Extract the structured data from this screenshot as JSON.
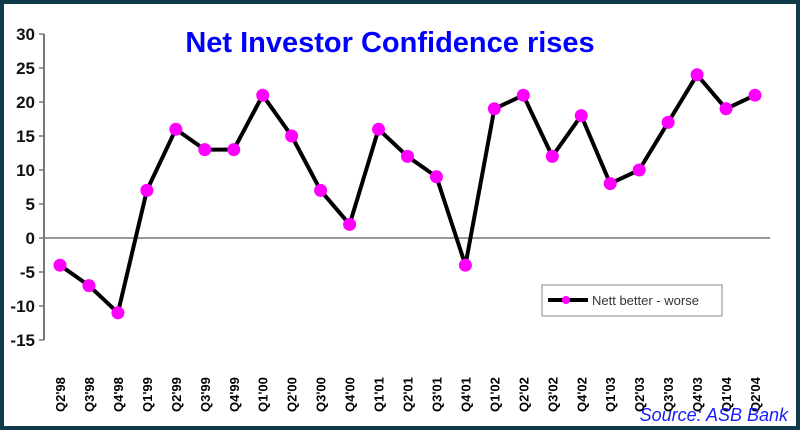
{
  "chart_data": {
    "type": "line",
    "title": "Net Investor Confidence rises",
    "source": "Source: ASB Bank",
    "xlabel": "",
    "ylabel": "",
    "ylim": [
      -15,
      30
    ],
    "yticks": [
      -15,
      -10,
      -5,
      0,
      5,
      10,
      15,
      20,
      25,
      30
    ],
    "grid": false,
    "legend_position": "right",
    "categories": [
      "Q2'98",
      "Q3'98",
      "Q4'98",
      "Q1'99",
      "Q2'99",
      "Q3'99",
      "Q4'99",
      "Q1'00",
      "Q2'00",
      "Q3'00",
      "Q4'00",
      "Q1'01",
      "Q2'01",
      "Q3'01",
      "Q4'01",
      "Q1'02",
      "Q2'02",
      "Q3'02",
      "Q4'02",
      "Q1'03",
      "Q2'03",
      "Q3'03",
      "Q4'03",
      "Q1'04",
      "Q2'04"
    ],
    "series": [
      {
        "name": "Nett better - worse",
        "line_color": "#000000",
        "marker_color": "#ff00ff",
        "values": [
          -4,
          -7,
          -11,
          7,
          16,
          13,
          13,
          21,
          15,
          7,
          2,
          16,
          12,
          9,
          -4,
          19,
          21,
          12,
          18,
          8,
          10,
          17,
          24,
          19,
          21
        ]
      }
    ]
  }
}
